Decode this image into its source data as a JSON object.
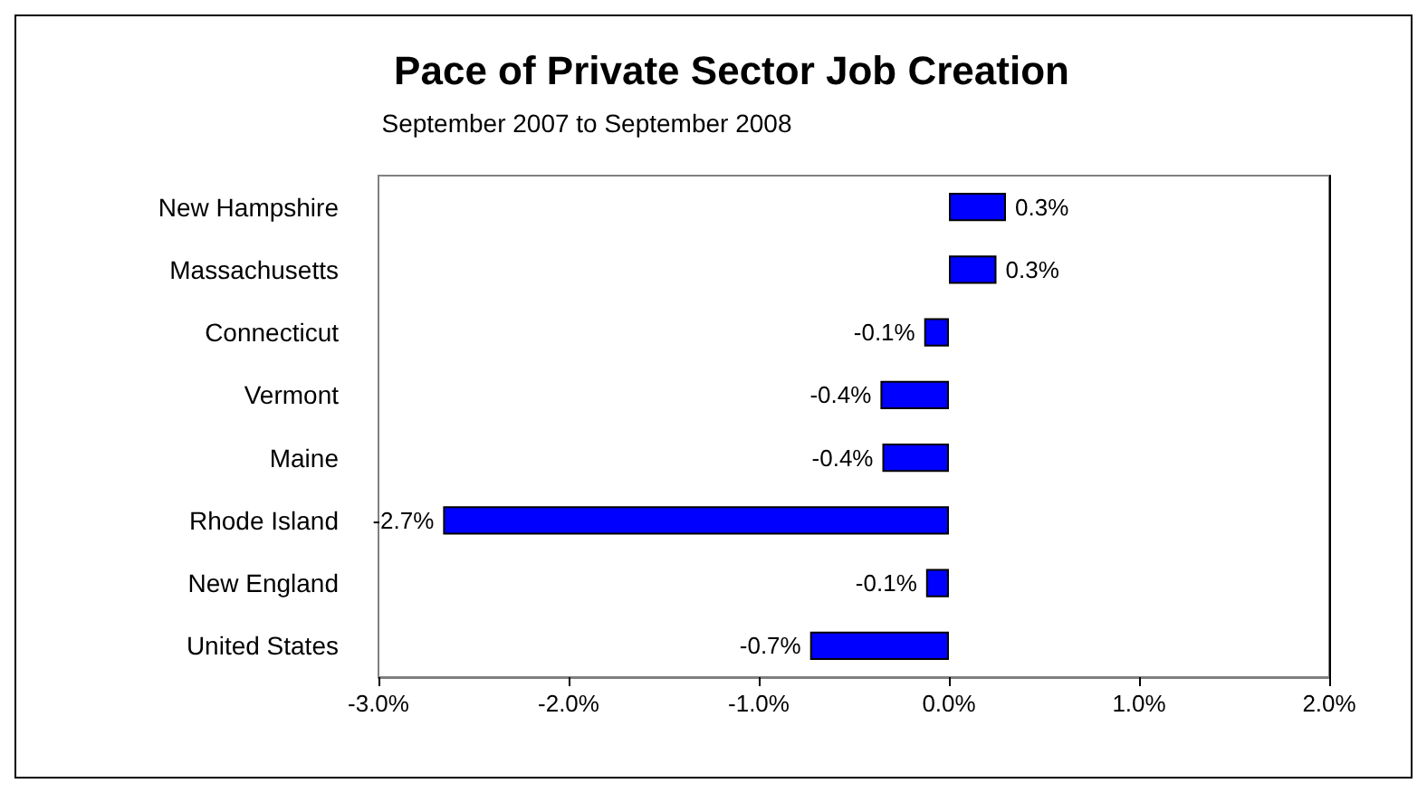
{
  "chart_data": {
    "type": "bar",
    "orientation": "horizontal",
    "title": "Pace of Private Sector Job Creation",
    "subtitle": "September 2007 to September 2008",
    "categories": [
      "New Hampshire",
      "Massachusetts",
      "Connecticut",
      "Vermont",
      "Maine",
      "Rhode Island",
      "New England",
      "United States"
    ],
    "values": [
      0.3,
      0.25,
      -0.13,
      -0.36,
      -0.35,
      -2.66,
      -0.12,
      -0.73
    ],
    "value_labels": [
      "0.3%",
      "0.3%",
      "-0.1%",
      "-0.4%",
      "-0.4%",
      "-2.7%",
      "-0.1%",
      "-0.7%"
    ],
    "color": "#0000ff",
    "xlim": [
      -3,
      2
    ],
    "xticks": [
      {
        "value": -3,
        "label": "-3.0%"
      },
      {
        "value": -2,
        "label": "-2.0%"
      },
      {
        "value": -1,
        "label": "-1.0%"
      },
      {
        "value": 0,
        "label": "0.0%"
      },
      {
        "value": 1,
        "label": "1.0%"
      },
      {
        "value": 2,
        "label": "2.0%"
      }
    ],
    "grid": false
  }
}
